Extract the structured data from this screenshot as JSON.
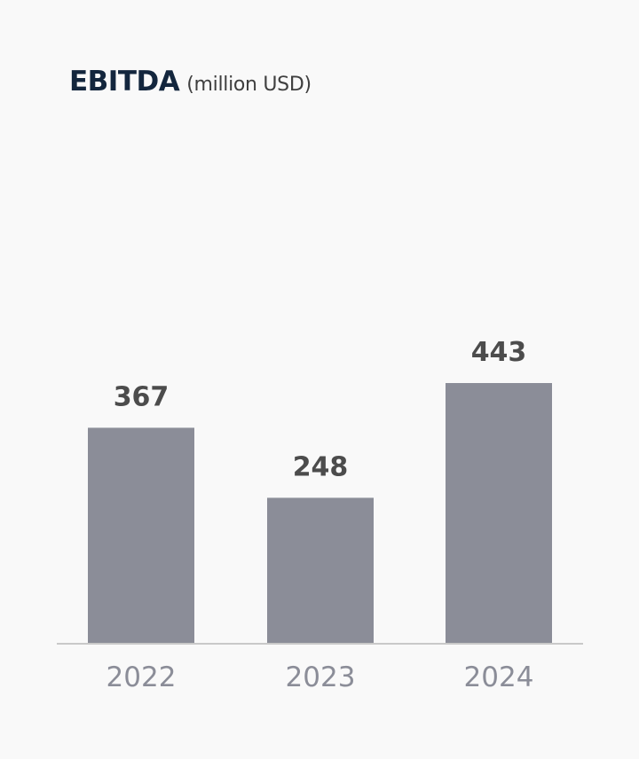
{
  "chart_data": {
    "type": "bar",
    "title": "EBITDA",
    "subtitle": "(million USD)",
    "categories": [
      "2022",
      "2023",
      "2024"
    ],
    "values": [
      367,
      248,
      443
    ],
    "data_labels": [
      "367",
      "248",
      "443"
    ],
    "ylim": [
      0,
      443
    ],
    "grid": false,
    "legend": "none",
    "bar_color": "#8b8d98",
    "title_color": "#13263d"
  }
}
